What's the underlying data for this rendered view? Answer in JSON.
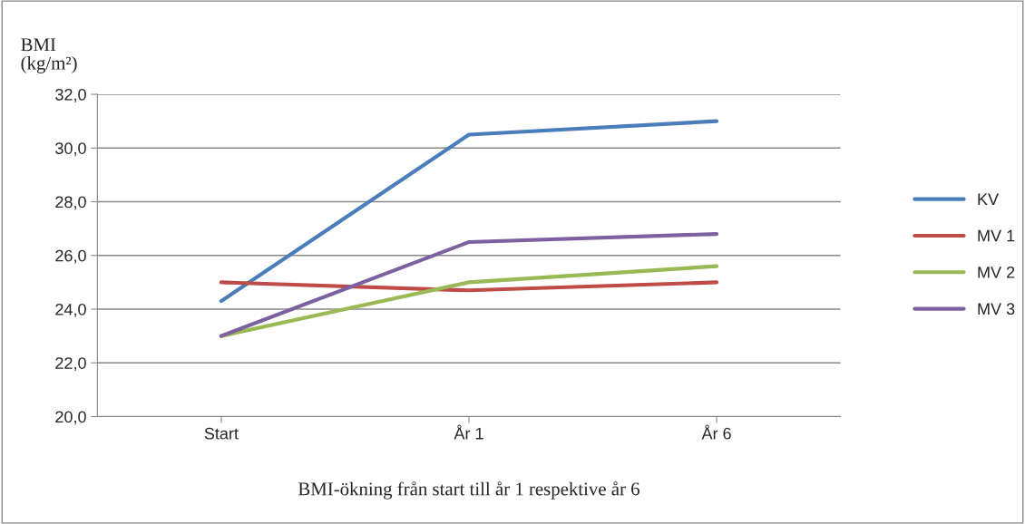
{
  "chart_data": {
    "type": "line",
    "ylabel": "BMI\n(kg/m²)",
    "xlabel": "BMI-ökning från start till år 1 respektive år 6",
    "categories": [
      "Start",
      "År 1",
      "År 6"
    ],
    "series": [
      {
        "name": "KV",
        "color": "#4a7ebb",
        "values": [
          24.3,
          30.5,
          31.0
        ]
      },
      {
        "name": "MV 1",
        "color": "#be4b48",
        "values": [
          25.0,
          24.7,
          25.0
        ]
      },
      {
        "name": "MV 2",
        "color": "#98b954",
        "values": [
          23.0,
          25.0,
          25.6
        ]
      },
      {
        "name": "MV 3",
        "color": "#7d60a0",
        "values": [
          23.0,
          26.5,
          26.8
        ]
      }
    ],
    "ylim": [
      20,
      32
    ],
    "yticks": [
      {
        "value": 20,
        "label": "20,0"
      },
      {
        "value": 22,
        "label": "22,0"
      },
      {
        "value": 24,
        "label": "24,0"
      },
      {
        "value": 26,
        "label": "26,0"
      },
      {
        "value": 28,
        "label": "28,0"
      },
      {
        "value": 30,
        "label": "30,0"
      },
      {
        "value": 32,
        "label": "32,0"
      }
    ],
    "grid": "y",
    "legend": "right",
    "marker": "none",
    "line_style": "solid"
  }
}
